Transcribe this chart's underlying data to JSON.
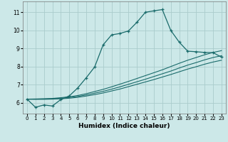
{
  "xlabel": "Humidex (Indice chaleur)",
  "background_color": "#cce8e8",
  "line_color": "#1a6b6b",
  "grid_color": "#aacccc",
  "xlim": [
    -0.5,
    23.5
  ],
  "ylim": [
    5.4,
    11.6
  ],
  "yticks": [
    6,
    7,
    8,
    9,
    10,
    11
  ],
  "xticks": [
    0,
    1,
    2,
    3,
    4,
    5,
    6,
    7,
    8,
    9,
    10,
    11,
    12,
    13,
    14,
    15,
    16,
    17,
    18,
    19,
    20,
    21,
    22,
    23
  ],
  "curve1_x": [
    0,
    1,
    2,
    3,
    4,
    5,
    6,
    7,
    8,
    9,
    10,
    11,
    12,
    13,
    14,
    15,
    16,
    17,
    18,
    19,
    20,
    21,
    22,
    23
  ],
  "curve1_y": [
    6.2,
    5.75,
    5.88,
    5.82,
    6.18,
    6.38,
    6.82,
    7.38,
    7.98,
    9.2,
    9.75,
    9.83,
    9.97,
    10.45,
    11.0,
    11.08,
    11.15,
    10.0,
    9.35,
    8.85,
    8.82,
    8.78,
    8.77,
    8.52
  ],
  "curve2_x": [
    0,
    1,
    2,
    3,
    4,
    5,
    6,
    7,
    8,
    9,
    10,
    11,
    12,
    13,
    14,
    15,
    16,
    17,
    18,
    19,
    20,
    21,
    22,
    23
  ],
  "curve2_y": [
    6.2,
    6.21,
    6.22,
    6.24,
    6.28,
    6.33,
    6.4,
    6.5,
    6.62,
    6.74,
    6.88,
    7.03,
    7.18,
    7.34,
    7.5,
    7.66,
    7.82,
    8.0,
    8.18,
    8.35,
    8.5,
    8.65,
    8.78,
    8.88
  ],
  "curve3_x": [
    0,
    1,
    2,
    3,
    4,
    5,
    6,
    7,
    8,
    9,
    10,
    11,
    12,
    13,
    14,
    15,
    16,
    17,
    18,
    19,
    20,
    21,
    22,
    23
  ],
  "curve3_y": [
    6.2,
    6.2,
    6.21,
    6.22,
    6.25,
    6.29,
    6.35,
    6.43,
    6.53,
    6.63,
    6.75,
    6.88,
    7.02,
    7.16,
    7.3,
    7.45,
    7.6,
    7.75,
    7.92,
    8.08,
    8.22,
    8.37,
    8.5,
    8.6
  ],
  "curve4_x": [
    0,
    1,
    2,
    3,
    4,
    5,
    6,
    7,
    8,
    9,
    10,
    11,
    12,
    13,
    14,
    15,
    16,
    17,
    18,
    19,
    20,
    21,
    22,
    23
  ],
  "curve4_y": [
    6.2,
    6.19,
    6.19,
    6.2,
    6.22,
    6.25,
    6.3,
    6.37,
    6.45,
    6.54,
    6.65,
    6.76,
    6.89,
    7.02,
    7.15,
    7.28,
    7.42,
    7.56,
    7.71,
    7.86,
    7.99,
    8.13,
    8.25,
    8.35
  ]
}
